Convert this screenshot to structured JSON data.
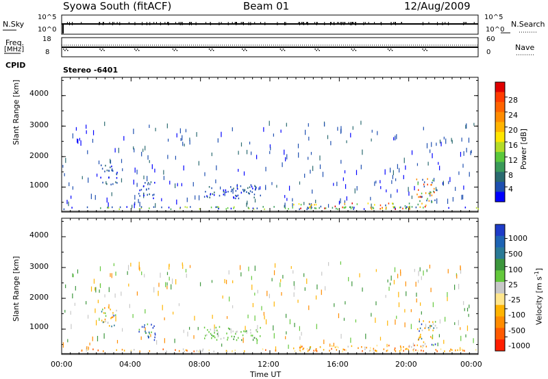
{
  "header": {
    "station": "Syowa South (fitACF)",
    "beam": "Beam 01",
    "date": "12/Aug/2009"
  },
  "top_panels": {
    "nsky_label": "N.Sky",
    "nsky_ticks": [
      "10^5",
      "10^0"
    ],
    "nsearch_label": "N.Search",
    "nsearch_ticks": [
      "10^5",
      "10^0"
    ],
    "freq_label": "Freq.",
    "freq_unit": "[MHz]",
    "freq_ticks": [
      "18",
      "8"
    ],
    "nave_label": "Nave",
    "nave_ticks": [
      "60",
      "0"
    ],
    "cpid_label": "CPID",
    "cpid_value": "Stereo -6401"
  },
  "chart_data": [
    {
      "type": "heatmap",
      "name": "power",
      "ylabel": "Slant Range [km]",
      "yticks": [
        "1000",
        "2000",
        "3000",
        "4000"
      ],
      "ylim": [
        180,
        4600
      ],
      "xlim_hours": [
        0,
        24
      ],
      "colorbar": {
        "label": "Power [dB]",
        "ticks": [
          "4",
          "8",
          "12",
          "16",
          "20",
          "24",
          "28"
        ],
        "range": [
          0,
          30
        ],
        "colors": [
          "#0000ff",
          "#1e4fb0",
          "#2a6a70",
          "#3a9a5a",
          "#5ac83c",
          "#b4dc28",
          "#ffe600",
          "#ffb400",
          "#ff8c00",
          "#ff6400",
          "#ff3c00",
          "#e00000"
        ]
      },
      "features": [
        {
          "t0": 0.0,
          "t1": 24.0,
          "r0": 300,
          "r1": 380,
          "level": "low-mid"
        },
        {
          "t0": 13.3,
          "t1": 21.0,
          "r0": 300,
          "r1": 500,
          "level": "high"
        },
        {
          "t0": 2.2,
          "t1": 3.2,
          "r0": 1100,
          "r1": 1750,
          "level": "low"
        },
        {
          "t0": 4.4,
          "t1": 5.4,
          "r0": 650,
          "r1": 1200,
          "level": "low"
        },
        {
          "t0": 8.2,
          "t1": 11.5,
          "r0": 650,
          "r1": 1100,
          "level": "low"
        },
        {
          "t0": 20.4,
          "t1": 21.6,
          "r0": 500,
          "r1": 1300,
          "level": "mid-high"
        }
      ]
    },
    {
      "type": "heatmap",
      "name": "velocity",
      "ylabel": "Slant Range [km]",
      "yticks": [
        "1000",
        "2000",
        "3000",
        "4000"
      ],
      "ylim": [
        180,
        4600
      ],
      "xlim_hours": [
        0,
        24
      ],
      "colorbar": {
        "label": "Velocity [m s",
        "label_sup": "-1",
        "label_end": "]",
        "ticks": [
          "1000",
          "500",
          "100",
          "25",
          "-25",
          "-100",
          "-500",
          "-1000"
        ],
        "colors": [
          "#1e3cc8",
          "#1e64b4",
          "#2a7a96",
          "#3c963c",
          "#64c83c",
          "#c8c8c8",
          "#ffe68c",
          "#ffb400",
          "#ff8c00",
          "#ff5a00",
          "#ff1e00"
        ]
      },
      "features": [
        {
          "t0": 0.0,
          "t1": 24.0,
          "r0": 300,
          "r1": 380,
          "level": "negative"
        },
        {
          "t0": 13.3,
          "t1": 21.0,
          "r0": 300,
          "r1": 500,
          "level": "negative"
        },
        {
          "t0": 2.2,
          "t1": 3.2,
          "r0": 1100,
          "r1": 1750,
          "level": "mixed"
        },
        {
          "t0": 4.4,
          "t1": 5.4,
          "r0": 650,
          "r1": 1200,
          "level": "positive"
        },
        {
          "t0": 8.2,
          "t1": 11.5,
          "r0": 650,
          "r1": 1100,
          "level": "positive-small"
        },
        {
          "t0": 20.4,
          "t1": 21.6,
          "r0": 500,
          "r1": 1300,
          "level": "mixed"
        }
      ]
    }
  ],
  "x_axis": {
    "ticks": [
      "00:00",
      "04:00",
      "08:00",
      "12:00",
      "16:00",
      "20:00",
      "00:00"
    ],
    "label": "Time UT"
  }
}
